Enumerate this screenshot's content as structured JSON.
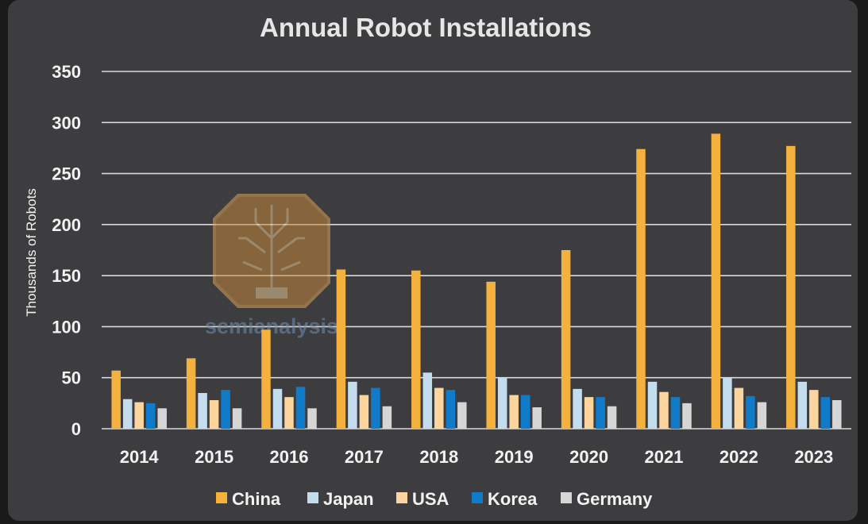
{
  "chart_data": {
    "type": "bar",
    "title": "Annual Robot Installations",
    "xlabel": "",
    "ylabel": "Thousands of Robots",
    "ylim": [
      0,
      350
    ],
    "yticks": [
      0,
      50,
      100,
      150,
      200,
      250,
      300,
      350
    ],
    "grid": true,
    "legend_position": "bottom",
    "categories": [
      "2014",
      "2015",
      "2016",
      "2017",
      "2018",
      "2019",
      "2020",
      "2021",
      "2022",
      "2023"
    ],
    "series": [
      {
        "name": "China",
        "color": "#f4b13e",
        "values": [
          57,
          69,
          97,
          156,
          155,
          144,
          175,
          274,
          289,
          277
        ]
      },
      {
        "name": "Japan",
        "color": "#c3dcee",
        "values": [
          29,
          35,
          39,
          46,
          55,
          50,
          39,
          46,
          50,
          46
        ]
      },
      {
        "name": "USA",
        "color": "#fbd59d",
        "values": [
          26,
          28,
          31,
          33,
          40,
          33,
          31,
          36,
          40,
          38
        ]
      },
      {
        "name": "Korea",
        "color": "#0f7bc9",
        "values": [
          25,
          38,
          41,
          40,
          38,
          33,
          31,
          31,
          32,
          31
        ]
      },
      {
        "name": "Germany",
        "color": "#d6d6d6",
        "values": [
          20,
          20,
          20,
          22,
          26,
          21,
          22,
          25,
          26,
          28
        ]
      }
    ]
  },
  "watermark": {
    "brand": "semianalysis",
    "icon": "circuit-tree-octagon-logo"
  }
}
